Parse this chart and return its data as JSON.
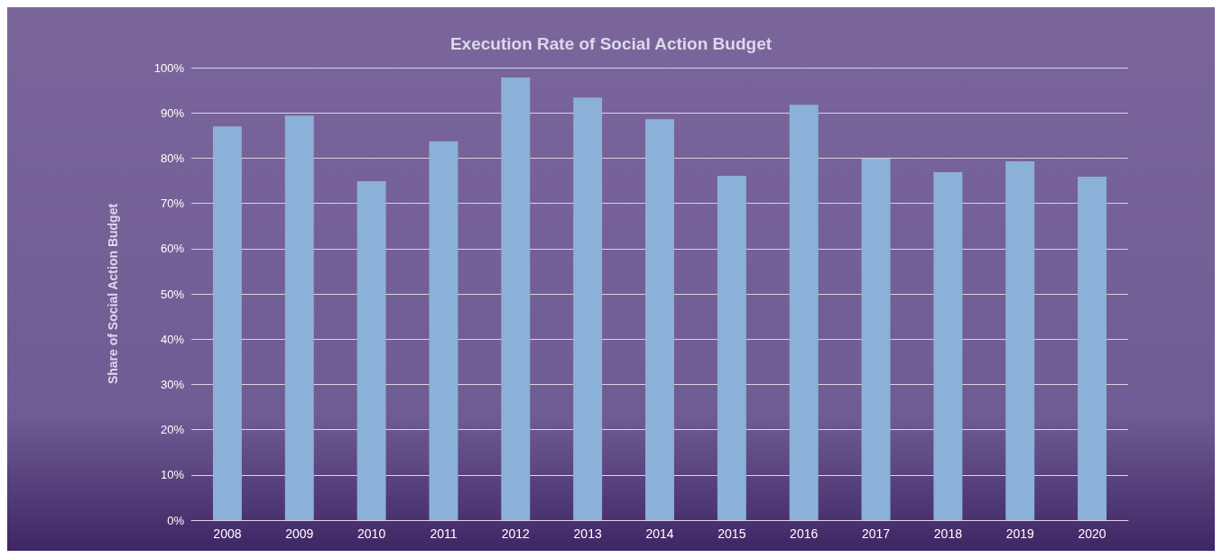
{
  "chart_data": {
    "type": "bar",
    "title": "Execution Rate of Social Action Budget",
    "ylabel": "Share of Social Action Budget",
    "categories": [
      "2008",
      "2009",
      "2010",
      "2011",
      "2012",
      "2013",
      "2014",
      "2015",
      "2016",
      "2017",
      "2018",
      "2019",
      "2020"
    ],
    "values": [
      87.0,
      89.4,
      74.9,
      83.7,
      97.8,
      93.4,
      88.6,
      76.1,
      91.8,
      79.9,
      76.9,
      79.3,
      75.9
    ],
    "color": "#8cb1d8",
    "ylim": [
      0,
      100
    ],
    "yticks": [
      {
        "value": 0,
        "label": "0%"
      },
      {
        "value": 10,
        "label": "10%"
      },
      {
        "value": 20,
        "label": "20%"
      },
      {
        "value": 30,
        "label": "30%"
      },
      {
        "value": 40,
        "label": "40%"
      },
      {
        "value": 50,
        "label": "50%"
      },
      {
        "value": 60,
        "label": "60%"
      },
      {
        "value": 70,
        "label": "70%"
      },
      {
        "value": 80,
        "label": "80%"
      },
      {
        "value": 90,
        "label": "90%"
      },
      {
        "value": 100,
        "label": "100%"
      }
    ],
    "grid": "y"
  }
}
